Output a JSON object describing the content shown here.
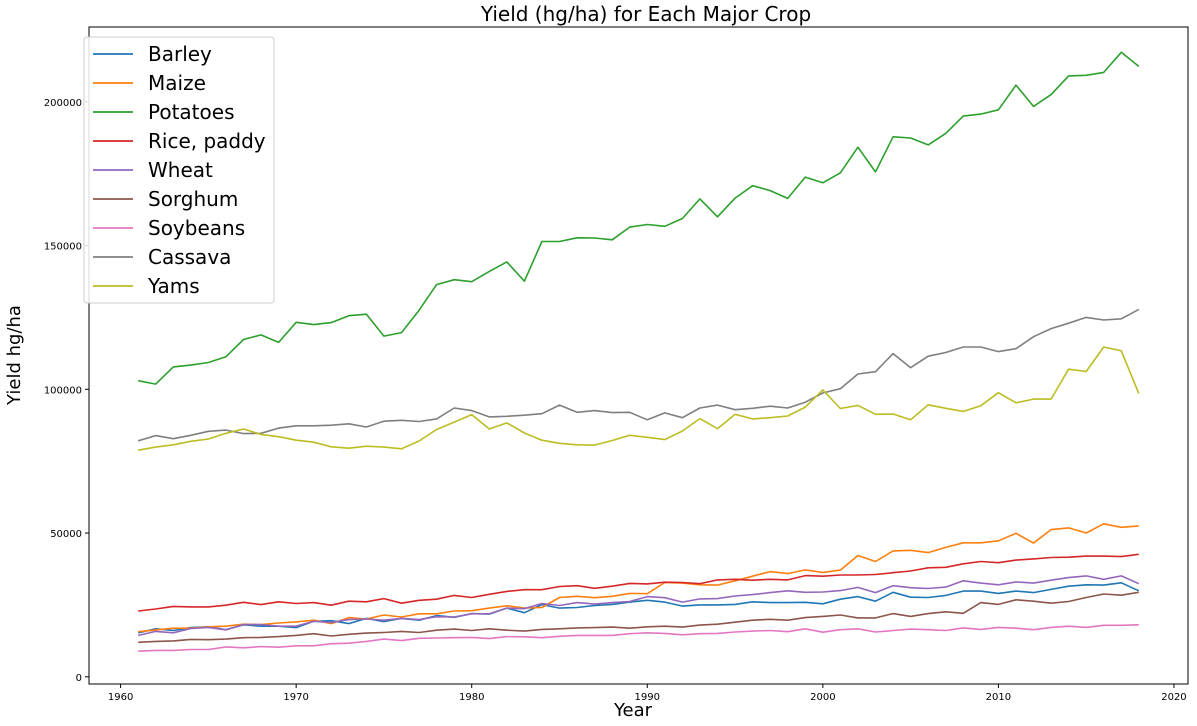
{
  "chart_data": {
    "type": "line",
    "title": "Yield (hg/ha) for Each Major Crop",
    "xlabel": "Year",
    "ylabel": "Yield hg/ha",
    "xlim": [
      1958.2,
      2020.8
    ],
    "ylim": [
      -2500,
      226000
    ],
    "xticks": [
      1960,
      1970,
      1980,
      1990,
      2000,
      2010,
      2020
    ],
    "yticks": [
      0,
      50000,
      100000,
      150000,
      200000
    ],
    "legend": "top-left",
    "grid": false,
    "x": [
      1961,
      1962,
      1963,
      1964,
      1965,
      1966,
      1967,
      1968,
      1969,
      1970,
      1971,
      1972,
      1973,
      1974,
      1975,
      1976,
      1977,
      1978,
      1979,
      1980,
      1981,
      1982,
      1983,
      1984,
      1985,
      1986,
      1987,
      1988,
      1989,
      1990,
      1991,
      1992,
      1993,
      1994,
      1995,
      1996,
      1997,
      1998,
      1999,
      2000,
      2001,
      2002,
      2003,
      2004,
      2005,
      2006,
      2007,
      2008,
      2009,
      2010,
      2011,
      2012,
      2013,
      2014,
      2015,
      2016,
      2017,
      2018
    ],
    "series": [
      {
        "name": "Barley",
        "color": "#1f77b4",
        "values": [
          15300,
          16700,
          16100,
          17100,
          17400,
          16400,
          18100,
          17600,
          17600,
          17100,
          19300,
          19500,
          18500,
          20300,
          19200,
          20300,
          19700,
          21300,
          20700,
          22000,
          21800,
          23900,
          22300,
          25100,
          23900,
          24100,
          24800,
          25200,
          26000,
          26600,
          26000,
          24600,
          25000,
          25000,
          25200,
          26100,
          25800,
          25800,
          25900,
          25400,
          27000,
          27900,
          26300,
          29400,
          27700,
          27600,
          28300,
          29800,
          29800,
          29000,
          29800,
          29300,
          30400,
          31500,
          32000,
          31900,
          32700,
          29900
        ]
      },
      {
        "name": "Maize",
        "color": "#ff7f0e",
        "values": [
          15700,
          16300,
          16900,
          16900,
          17400,
          17600,
          18300,
          18200,
          18700,
          19100,
          19700,
          18500,
          20600,
          20100,
          21500,
          20800,
          21900,
          21900,
          22900,
          23000,
          23900,
          24700,
          23900,
          24100,
          27600,
          28000,
          27500,
          28000,
          29000,
          28900,
          32800,
          32600,
          32000,
          31900,
          33400,
          35000,
          36600,
          35900,
          37200,
          36300,
          37100,
          42200,
          40100,
          43800,
          44000,
          43200,
          45000,
          46600,
          46600,
          47300,
          49900,
          46500,
          51200,
          51800,
          50000,
          53200,
          52000,
          52500
        ]
      },
      {
        "name": "Potatoes",
        "color": "#2ca02c",
        "values": [
          103000,
          101800,
          107800,
          108400,
          109300,
          111300,
          117300,
          118900,
          116300,
          123300,
          122500,
          123200,
          125600,
          126100,
          118500,
          119700,
          127500,
          136400,
          138100,
          137400,
          141000,
          144300,
          137600,
          151400,
          151400,
          152700,
          152600,
          152000,
          156400,
          157300,
          156700,
          159400,
          166200,
          160000,
          166500,
          170800,
          169100,
          166400,
          173800,
          171800,
          175300,
          184200,
          175600,
          187800,
          187400,
          185000,
          189000,
          195000,
          195700,
          197200,
          205800,
          198400,
          202500,
          209000,
          209200,
          210200,
          217200,
          212300
        ]
      },
      {
        "name": "Rice, paddy",
        "color": "#d62728",
        "values": [
          22900,
          23600,
          24500,
          24300,
          24300,
          24900,
          25900,
          25100,
          26100,
          25500,
          25800,
          24900,
          26300,
          26100,
          27200,
          25600,
          26600,
          27000,
          28300,
          27600,
          28700,
          29700,
          30300,
          30300,
          31400,
          31700,
          30800,
          31500,
          32500,
          32300,
          32900,
          32800,
          32400,
          33700,
          33900,
          33600,
          33900,
          33700,
          35200,
          35000,
          35400,
          35400,
          35600,
          36200,
          36800,
          37900,
          38100,
          39300,
          40100,
          39700,
          40600,
          41000,
          41500,
          41600,
          42000,
          42000,
          41800,
          42600
        ]
      },
      {
        "name": "Wheat",
        "color": "#9467bd",
        "values": [
          14400,
          15800,
          15300,
          16800,
          17200,
          16300,
          18200,
          18200,
          17600,
          17600,
          19300,
          18900,
          19900,
          20100,
          19700,
          20300,
          19900,
          20900,
          20800,
          21900,
          21900,
          23900,
          23700,
          25500,
          24800,
          25800,
          25300,
          25800,
          26200,
          27900,
          27500,
          26000,
          27100,
          27200,
          28100,
          28600,
          29300,
          29900,
          29400,
          29500,
          30000,
          31100,
          29300,
          31700,
          31000,
          30700,
          31200,
          33400,
          32600,
          32000,
          33000,
          32600,
          33600,
          34500,
          35100,
          33900,
          35100,
          32400
        ]
      },
      {
        "name": "Sorghum",
        "color": "#8c564b",
        "values": [
          12000,
          12300,
          12500,
          13000,
          12900,
          13100,
          13600,
          13700,
          14000,
          14400,
          15000,
          14200,
          14800,
          15200,
          15400,
          15800,
          15400,
          16200,
          16600,
          16100,
          16700,
          16200,
          15900,
          16500,
          16700,
          17000,
          17100,
          17300,
          16900,
          17400,
          17600,
          17300,
          18000,
          18300,
          19000,
          19700,
          20000,
          19700,
          20600,
          21000,
          21500,
          20500,
          20500,
          22000,
          21000,
          22000,
          22600,
          22100,
          25800,
          25200,
          26800,
          26300,
          25600,
          26200,
          27600,
          28800,
          28400,
          29400
        ]
      },
      {
        "name": "Soybeans",
        "color": "#e377c2",
        "values": [
          8900,
          9200,
          9200,
          9500,
          9500,
          10400,
          10100,
          10500,
          10300,
          10800,
          10800,
          11500,
          11700,
          12300,
          13100,
          12600,
          13400,
          13500,
          13600,
          13700,
          13300,
          14000,
          13900,
          13600,
          14100,
          14400,
          14400,
          14400,
          15000,
          15300,
          15100,
          14600,
          15000,
          15100,
          15600,
          15900,
          16100,
          15700,
          16700,
          15500,
          16400,
          16700,
          15600,
          16100,
          16600,
          16400,
          16100,
          17000,
          16500,
          17200,
          16900,
          16400,
          17200,
          17600,
          17200,
          17900,
          17900,
          18100
        ]
      },
      {
        "name": "Cassava",
        "color": "#7f7f7f",
        "values": [
          82100,
          83900,
          82800,
          84000,
          85400,
          85800,
          84600,
          84700,
          86500,
          87300,
          87300,
          87500,
          88000,
          86900,
          88900,
          89200,
          88800,
          89700,
          93500,
          92600,
          90400,
          90600,
          91000,
          91500,
          94500,
          92000,
          92600,
          91900,
          92000,
          89400,
          91800,
          90100,
          93500,
          94500,
          92900,
          93400,
          94100,
          93500,
          95500,
          98700,
          100200,
          105300,
          106100,
          112400,
          107500,
          111500,
          112800,
          114700,
          114700,
          113100,
          114100,
          118300,
          121100,
          123000,
          125000,
          124100,
          124500,
          127800
        ]
      },
      {
        "name": "Yams",
        "color": "#bcbd22",
        "values": [
          78800,
          79900,
          80700,
          81900,
          82700,
          84700,
          86200,
          84300,
          83500,
          82300,
          81600,
          80000,
          79500,
          80200,
          79900,
          79300,
          82000,
          86000,
          88600,
          91200,
          86200,
          88300,
          84800,
          82300,
          81200,
          80700,
          80600,
          82200,
          84000,
          83300,
          82500,
          85500,
          89800,
          86300,
          91300,
          89700,
          90100,
          90700,
          93800,
          99800,
          93300,
          94400,
          91300,
          91400,
          89400,
          94600,
          93400,
          92300,
          94300,
          98800,
          95300,
          96600,
          96600,
          107000,
          106200,
          114700,
          113400,
          98500
        ]
      }
    ]
  }
}
